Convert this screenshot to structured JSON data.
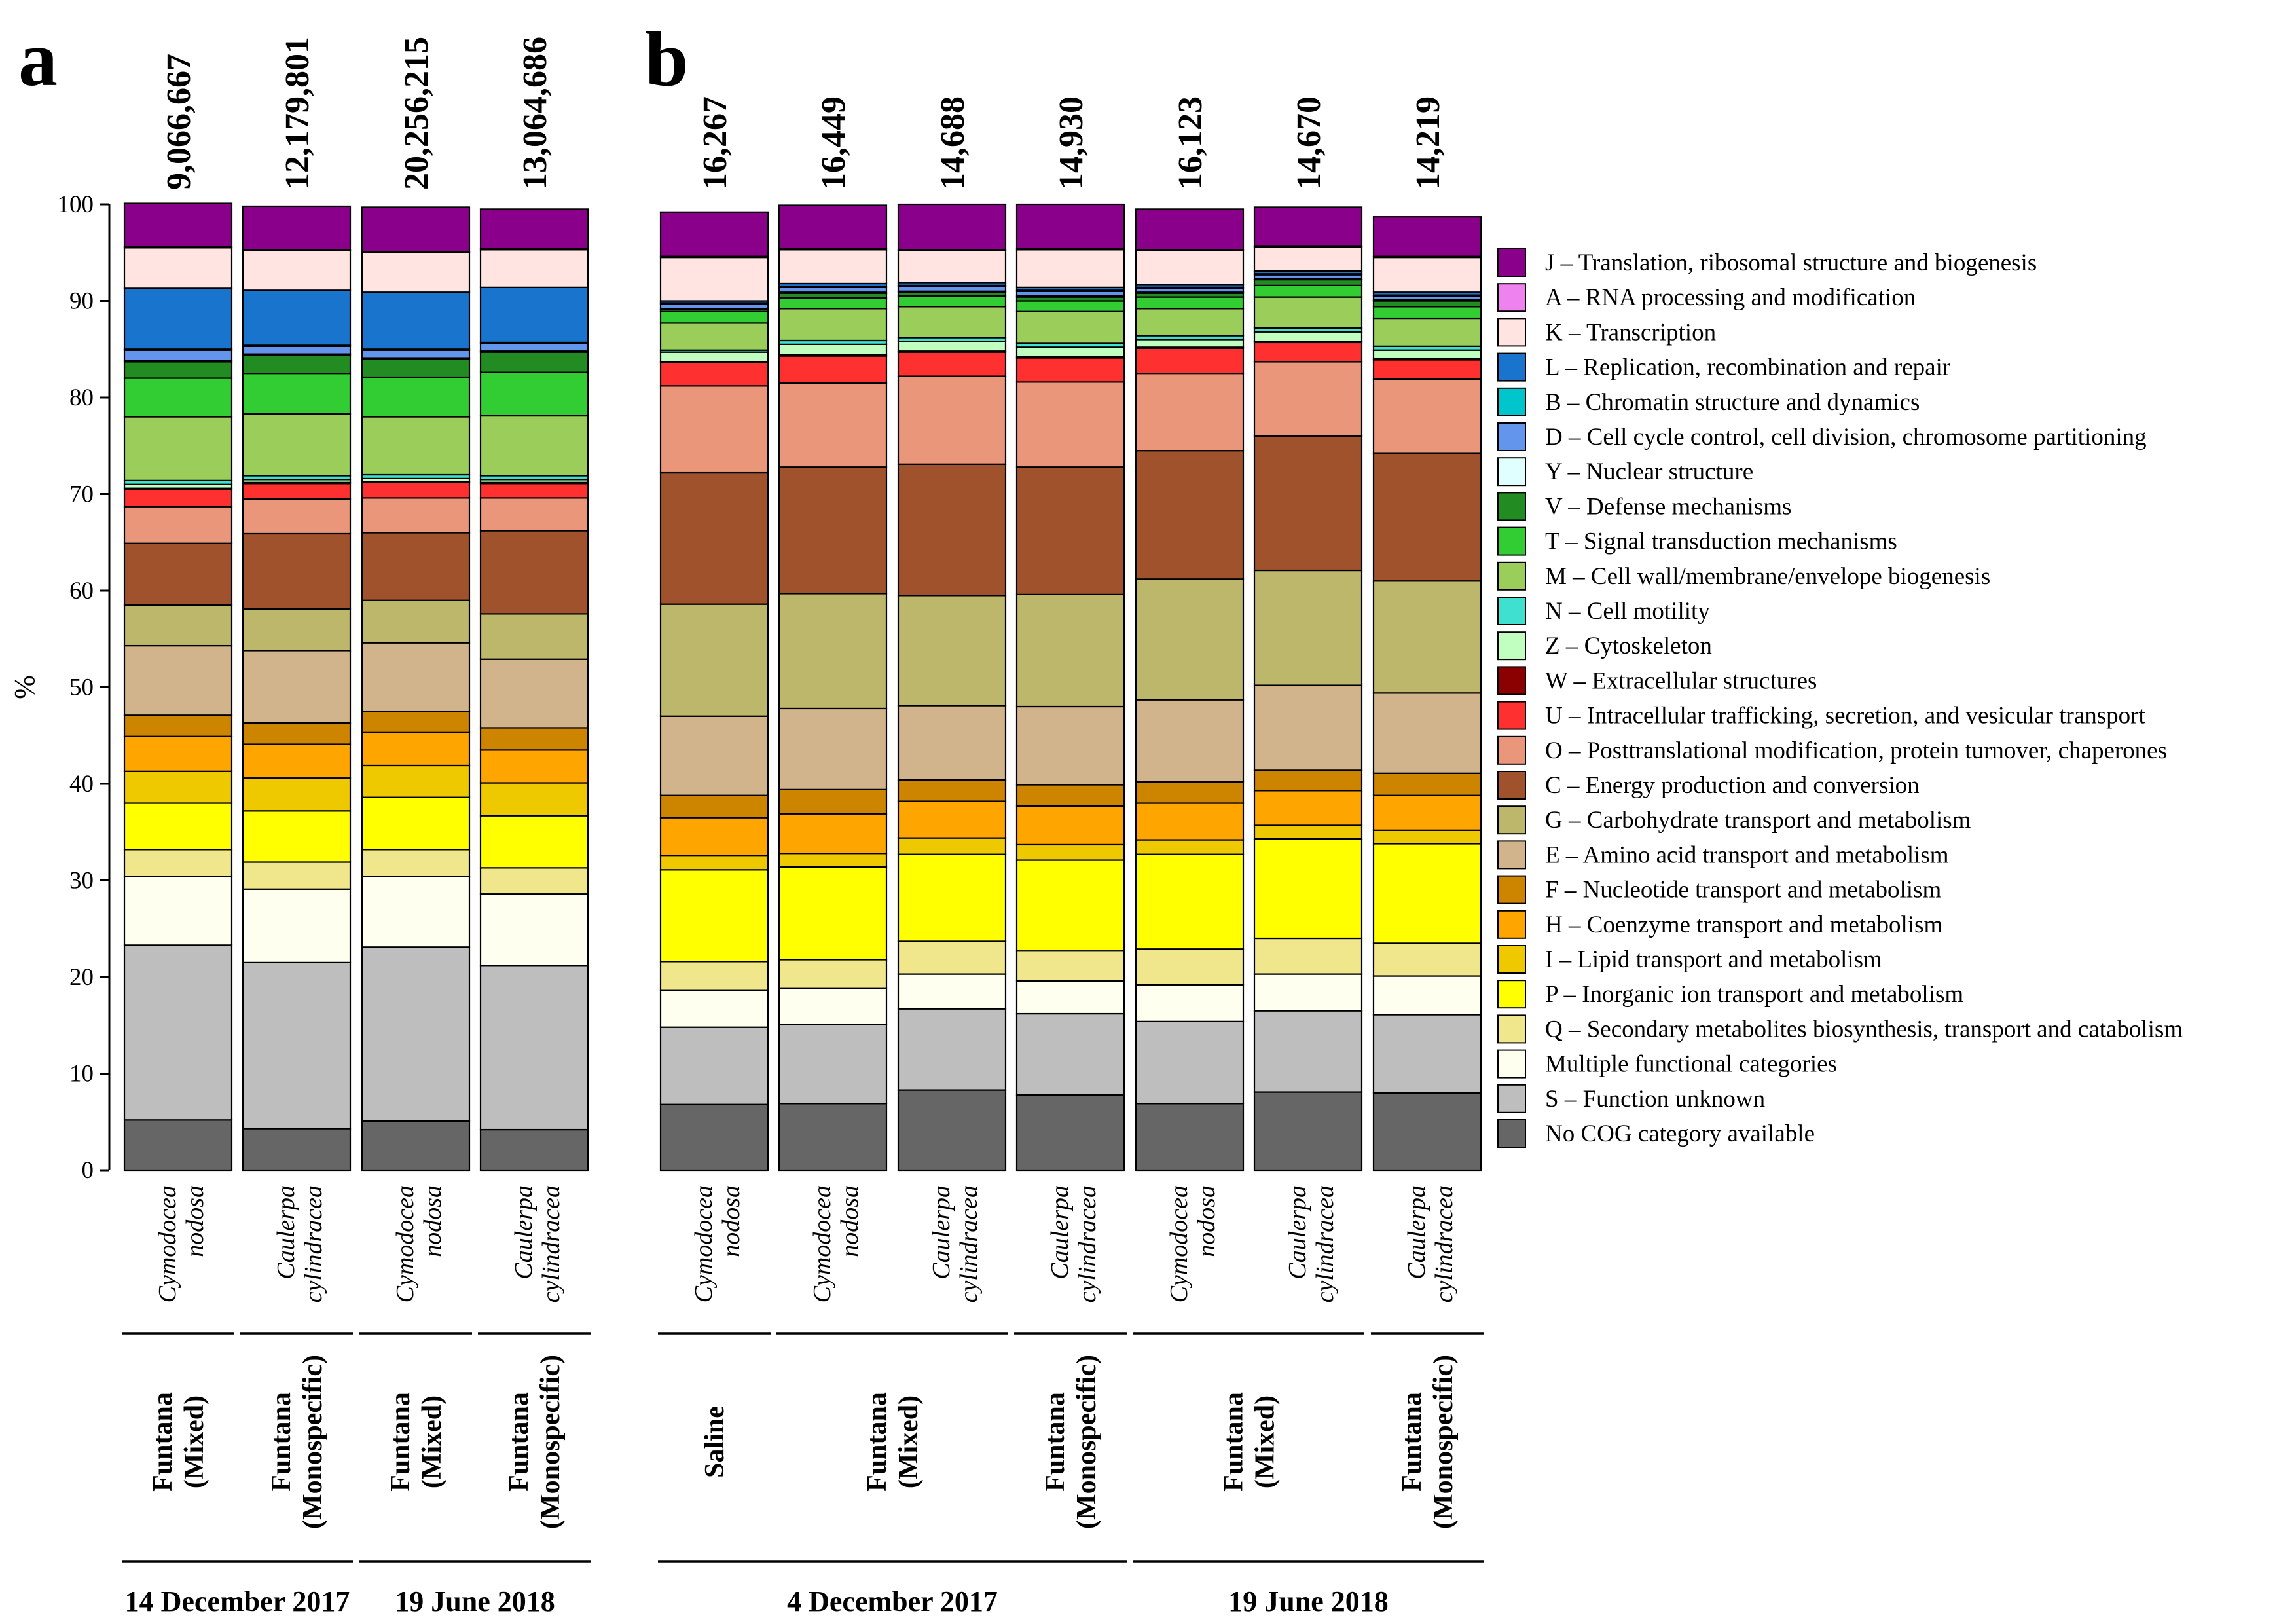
{
  "chart_data": {
    "type": "bar",
    "stacked": true,
    "ylabel": "%",
    "ylim": [
      0,
      100
    ],
    "yticks": [
      0,
      10,
      20,
      30,
      40,
      50,
      60,
      70,
      80,
      90,
      100
    ],
    "grid": false,
    "legend_position": "right",
    "categories": [
      {
        "code": "J",
        "label": "J – Translation, ribosomal structure and biogenesis",
        "color": "#8B008B"
      },
      {
        "code": "A",
        "label": "A – RNA processing and modification",
        "color": "#EE82EE"
      },
      {
        "code": "K",
        "label": "K – Transcription",
        "color": "#FFE4E1"
      },
      {
        "code": "L",
        "label": "L – Replication, recombination and repair",
        "color": "#1874CD"
      },
      {
        "code": "B",
        "label": "B – Chromatin structure and dynamics",
        "color": "#00C5CD"
      },
      {
        "code": "D",
        "label": "D – Cell cycle control, cell division, chromosome partitioning",
        "color": "#6495ED"
      },
      {
        "code": "Y",
        "label": "Y – Nuclear structure",
        "color": "#E0FFFF"
      },
      {
        "code": "V",
        "label": "V – Defense mechanisms",
        "color": "#228B22"
      },
      {
        "code": "T",
        "label": "T – Signal transduction mechanisms",
        "color": "#32CD32"
      },
      {
        "code": "M",
        "label": "M – Cell wall/membrane/envelope biogenesis",
        "color": "#9ACD5A"
      },
      {
        "code": "N",
        "label": "N – Cell motility",
        "color": "#40E0D0"
      },
      {
        "code": "Z",
        "label": "Z – Cytoskeleton",
        "color": "#C1FFC1"
      },
      {
        "code": "W",
        "label": "W – Extracellular structures",
        "color": "#8B0000"
      },
      {
        "code": "U",
        "label": "U – Intracellular trafficking, secretion, and vesicular transport",
        "color": "#FF3030"
      },
      {
        "code": "O",
        "label": "O – Posttranslational modification, protein turnover, chaperones",
        "color": "#E9967A"
      },
      {
        "code": "C",
        "label": "C – Energy production and conversion",
        "color": "#A0522D"
      },
      {
        "code": "G",
        "label": "G – Carbohydrate transport and metabolism",
        "color": "#BDB76B"
      },
      {
        "code": "E",
        "label": "E – Amino acid transport and metabolism",
        "color": "#D2B48C"
      },
      {
        "code": "F",
        "label": "F – Nucleotide transport and metabolism",
        "color": "#CD8500"
      },
      {
        "code": "H",
        "label": "H – Coenzyme transport and metabolism",
        "color": "#FFA500"
      },
      {
        "code": "I",
        "label": "I – Lipid transport and metabolism",
        "color": "#EEC900"
      },
      {
        "code": "P",
        "label": "P – Inorganic ion transport and metabolism",
        "color": "#FFFF00"
      },
      {
        "code": "Q",
        "label": "Q – Secondary metabolites biosynthesis, transport and catabolism",
        "color": "#F0E68C"
      },
      {
        "code": "MULT",
        "label": "Multiple functional categories",
        "color": "#FFFFF0"
      },
      {
        "code": "S",
        "label": "S – Function unknown",
        "color": "#BEBEBE"
      },
      {
        "code": "NOCOG",
        "label": "No COG category available",
        "color": "#666666"
      }
    ],
    "stack_order_bottom_to_top": [
      "NOCOG",
      "S",
      "MULT",
      "Q",
      "P",
      "I",
      "H",
      "F",
      "E",
      "G",
      "C",
      "O",
      "U",
      "W",
      "Z",
      "N",
      "M",
      "T",
      "V",
      "Y",
      "D",
      "B",
      "L",
      "K",
      "A",
      "J"
    ],
    "panels": [
      {
        "label": "a",
        "bars": [
          {
            "total": "9,066,667",
            "species": [
              "Cymodocea",
              "nodosa"
            ],
            "values": {
              "NOCOG": 5.2,
              "S": 18.1,
              "MULT": 7.1,
              "Q": 2.8,
              "P": 4.8,
              "I": 3.3,
              "H": 3.6,
              "F": 2.2,
              "E": 7.2,
              "G": 4.2,
              "C": 6.4,
              "O": 3.8,
              "U": 1.8,
              "W": 0.1,
              "Z": 0.4,
              "N": 0.4,
              "M": 6.6,
              "T": 4.0,
              "V": 1.7,
              "Y": 0.1,
              "D": 1.1,
              "B": 0.1,
              "L": 6.3,
              "K": 4.2,
              "A": 0.1,
              "J": 4.5
            }
          },
          {
            "total": "12,179,801",
            "species": [
              "Caulerpa",
              "cylindracea"
            ],
            "values": {
              "NOCOG": 4.3,
              "S": 17.2,
              "MULT": 7.6,
              "Q": 2.8,
              "P": 5.3,
              "I": 3.4,
              "H": 3.5,
              "F": 2.2,
              "E": 7.5,
              "G": 4.3,
              "C": 7.8,
              "O": 3.6,
              "U": 1.6,
              "W": 0.1,
              "Z": 0.3,
              "N": 0.4,
              "M": 6.4,
              "T": 4.2,
              "V": 1.9,
              "Y": 0.1,
              "D": 0.8,
              "B": 0.1,
              "L": 5.7,
              "K": 4.1,
              "A": 0.1,
              "J": 4.5
            }
          },
          {
            "total": "20,256,215",
            "species": [
              "Cymodocea",
              "nodosa"
            ],
            "values": {
              "NOCOG": 5.1,
              "S": 18.0,
              "MULT": 7.3,
              "Q": 2.8,
              "P": 5.4,
              "I": 3.3,
              "H": 3.4,
              "F": 2.2,
              "E": 7.1,
              "G": 4.4,
              "C": 7.0,
              "O": 3.6,
              "U": 1.6,
              "W": 0.1,
              "Z": 0.3,
              "N": 0.4,
              "M": 6.0,
              "T": 4.1,
              "V": 1.9,
              "Y": 0.1,
              "D": 0.8,
              "B": 0.1,
              "L": 5.9,
              "K": 4.1,
              "A": 0.1,
              "J": 4.6
            }
          },
          {
            "total": "13,064,686",
            "species": [
              "Caulerpa",
              "cylindracea"
            ],
            "values": {
              "NOCOG": 4.2,
              "S": 17.0,
              "MULT": 7.4,
              "Q": 2.7,
              "P": 5.4,
              "I": 3.4,
              "H": 3.4,
              "F": 2.3,
              "E": 7.1,
              "G": 4.7,
              "C": 8.6,
              "O": 3.4,
              "U": 1.5,
              "W": 0.1,
              "Z": 0.3,
              "N": 0.4,
              "M": 6.2,
              "T": 4.5,
              "V": 2.1,
              "Y": 0.1,
              "D": 0.8,
              "B": 0.1,
              "L": 5.7,
              "K": 3.9,
              "A": 0.1,
              "J": 4.1
            }
          }
        ],
        "groups": [
          {
            "label": [
              "Funtana",
              "(Mixed)"
            ],
            "start": 0,
            "end": 0
          },
          {
            "label": [
              "Funtana",
              "(Monospecific)"
            ],
            "start": 1,
            "end": 1
          },
          {
            "label": [
              "Funtana",
              "(Mixed)"
            ],
            "start": 2,
            "end": 2
          },
          {
            "label": [
              "Funtana",
              "(Monospecific)"
            ],
            "start": 3,
            "end": 3
          }
        ],
        "dates": [
          {
            "label": "14 December 2017",
            "start": 0,
            "end": 1
          },
          {
            "label": "19 June 2018",
            "start": 2,
            "end": 3
          }
        ]
      },
      {
        "label": "b",
        "bars": [
          {
            "total": "16,267",
            "species": [
              "Cymodocea",
              "nodosa"
            ],
            "values": {
              "NOCOG": 6.8,
              "S": 8.0,
              "MULT": 3.8,
              "Q": 3.0,
              "P": 9.5,
              "I": 1.5,
              "H": 3.9,
              "F": 2.3,
              "E": 8.2,
              "G": 11.6,
              "C": 13.6,
              "O": 9.0,
              "U": 2.4,
              "W": 0.1,
              "Z": 1.0,
              "N": 0.2,
              "M": 2.8,
              "T": 1.2,
              "V": 0.2,
              "Y": 0.1,
              "D": 0.5,
              "B": 0.1,
              "L": 0.2,
              "K": 4.5,
              "A": 0.1,
              "J": 4.6
            }
          },
          {
            "total": "16,449",
            "species": [
              "Cymodocea",
              "nodosa"
            ],
            "values": {
              "NOCOG": 6.9,
              "S": 8.2,
              "MULT": 3.7,
              "Q": 3.0,
              "P": 9.6,
              "I": 1.4,
              "H": 4.1,
              "F": 2.5,
              "E": 8.4,
              "G": 11.9,
              "C": 13.1,
              "O": 8.7,
              "U": 2.8,
              "W": 0.1,
              "Z": 1.1,
              "N": 0.4,
              "M": 3.3,
              "T": 1.1,
              "V": 0.5,
              "Y": 0.1,
              "D": 0.5,
              "B": 0.1,
              "L": 0.3,
              "K": 3.5,
              "A": 0.1,
              "J": 4.5
            }
          },
          {
            "total": "14,688",
            "species": [
              "Caulerpa",
              "cylindracea"
            ],
            "values": {
              "NOCOG": 8.3,
              "S": 8.4,
              "MULT": 3.6,
              "Q": 3.4,
              "P": 9.0,
              "I": 1.7,
              "H": 3.8,
              "F": 2.2,
              "E": 7.7,
              "G": 11.4,
              "C": 13.6,
              "O": 9.1,
              "U": 2.5,
              "W": 0.1,
              "Z": 1.0,
              "N": 0.4,
              "M": 3.2,
              "T": 1.1,
              "V": 0.4,
              "Y": 0.1,
              "D": 0.5,
              "B": 0.1,
              "L": 0.3,
              "K": 3.3,
              "A": 0.1,
              "J": 4.7
            }
          },
          {
            "total": "14,930",
            "species": [
              "Caulerpa",
              "cylindracea"
            ],
            "values": {
              "NOCOG": 7.8,
              "S": 8.4,
              "MULT": 3.4,
              "Q": 3.1,
              "P": 9.4,
              "I": 1.6,
              "H": 4.0,
              "F": 2.2,
              "E": 8.1,
              "G": 11.6,
              "C": 13.2,
              "O": 8.8,
              "U": 2.5,
              "W": 0.1,
              "Z": 1.0,
              "N": 0.4,
              "M": 3.3,
              "T": 1.1,
              "V": 0.4,
              "Y": 0.1,
              "D": 0.5,
              "B": 0.1,
              "L": 0.3,
              "K": 3.9,
              "A": 0.1,
              "J": 4.6
            }
          },
          {
            "total": "16,123",
            "species": [
              "Cymodocea",
              "nodosa"
            ],
            "values": {
              "NOCOG": 6.9,
              "S": 8.5,
              "MULT": 3.8,
              "Q": 3.7,
              "P": 9.8,
              "I": 1.5,
              "H": 3.8,
              "F": 2.2,
              "E": 8.5,
              "G": 12.5,
              "C": 13.3,
              "O": 8.0,
              "U": 2.6,
              "W": 0.1,
              "Z": 0.8,
              "N": 0.4,
              "M": 2.8,
              "T": 1.2,
              "V": 0.4,
              "Y": 0.1,
              "D": 0.4,
              "B": 0.1,
              "L": 0.3,
              "K": 3.5,
              "A": 0.1,
              "J": 4.2
            }
          },
          {
            "total": "14,670",
            "species": [
              "Caulerpa",
              "cylindracea"
            ],
            "values": {
              "NOCOG": 8.1,
              "S": 8.4,
              "MULT": 3.8,
              "Q": 3.7,
              "P": 10.3,
              "I": 1.4,
              "H": 3.6,
              "F": 2.1,
              "E": 8.8,
              "G": 11.9,
              "C": 13.9,
              "O": 7.7,
              "U": 2.0,
              "W": 0.1,
              "Z": 1.0,
              "N": 0.4,
              "M": 3.2,
              "T": 1.2,
              "V": 0.6,
              "Y": 0.1,
              "D": 0.4,
              "B": 0.1,
              "L": 0.3,
              "K": 2.5,
              "A": 0.1,
              "J": 4.0
            }
          },
          {
            "total": "14,219",
            "species": [
              "Caulerpa",
              "cylindracea"
            ],
            "values": {
              "NOCOG": 8.0,
              "S": 8.1,
              "MULT": 4.0,
              "Q": 3.4,
              "P": 10.3,
              "I": 1.4,
              "H": 3.6,
              "F": 2.3,
              "E": 8.3,
              "G": 11.6,
              "C": 13.2,
              "O": 7.7,
              "U": 2.0,
              "W": 0.1,
              "Z": 0.9,
              "N": 0.4,
              "M": 2.9,
              "T": 1.2,
              "V": 0.6,
              "Y": 0.1,
              "D": 0.4,
              "B": 0.1,
              "L": 0.3,
              "K": 3.6,
              "A": 0.1,
              "J": 4.1
            }
          }
        ],
        "groups": [
          {
            "label": [
              "Saline"
            ],
            "start": 0,
            "end": 0
          },
          {
            "label": [
              "Funtana",
              "(Mixed)"
            ],
            "start": 1,
            "end": 2
          },
          {
            "label": [
              "Funtana",
              "(Monospecific)"
            ],
            "start": 3,
            "end": 3
          },
          {
            "label": [
              "Funtana",
              "(Mixed)"
            ],
            "start": 4,
            "end": 5
          },
          {
            "label": [
              "Funtana",
              "(Monospecific)"
            ],
            "start": 6,
            "end": 6
          }
        ],
        "dates": [
          {
            "label": "4 December 2017",
            "start": 0,
            "end": 3
          },
          {
            "label": "19 June 2018",
            "start": 4,
            "end": 6
          }
        ]
      }
    ]
  }
}
